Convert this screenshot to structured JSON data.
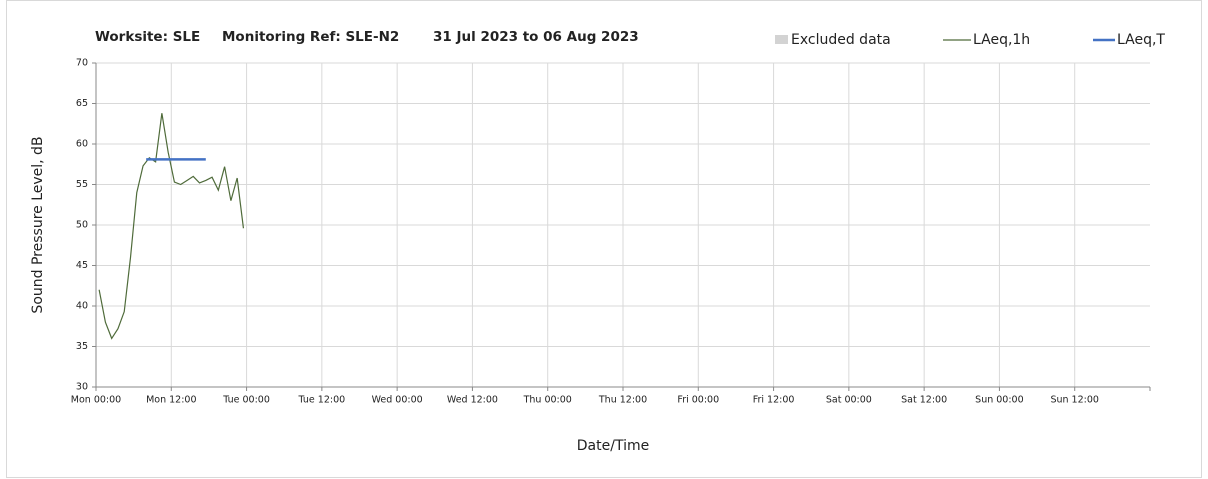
{
  "chart_data": {
    "type": "line",
    "title_parts": [
      "Worksite: SLE",
      "Monitoring Ref: SLE-N2",
      "31 Jul 2023 to 06 Aug 2023"
    ],
    "x_label": "Date/Time",
    "y_label": "Sound Pressure Level, dB",
    "xlim": [
      0,
      168
    ],
    "xticks": [
      {
        "value": 0,
        "label": "Mon 00:00"
      },
      {
        "value": 12,
        "label": "Mon 12:00"
      },
      {
        "value": 24,
        "label": "Tue 00:00"
      },
      {
        "value": 36,
        "label": "Tue 12:00"
      },
      {
        "value": 48,
        "label": "Wed 00:00"
      },
      {
        "value": 60,
        "label": "Wed 12:00"
      },
      {
        "value": 72,
        "label": "Thu 00:00"
      },
      {
        "value": 84,
        "label": "Thu 12:00"
      },
      {
        "value": 96,
        "label": "Fri 00:00"
      },
      {
        "value": 108,
        "label": "Fri 12:00"
      },
      {
        "value": 120,
        "label": "Sat 00:00"
      },
      {
        "value": 132,
        "label": "Sat 12:00"
      },
      {
        "value": 144,
        "label": "Sun 00:00"
      },
      {
        "value": 156,
        "label": "Sun 12:00"
      }
    ],
    "ylim": [
      30,
      70
    ],
    "yticks": [
      30,
      35,
      40,
      45,
      50,
      55,
      60,
      65,
      70
    ],
    "grid": true,
    "legend": "top-right",
    "series": [
      {
        "name": "Excluded data",
        "kind": "area",
        "color": "#d3d3d3",
        "x": [],
        "values": []
      },
      {
        "name": "LAeq,1h",
        "kind": "line",
        "color": "#4f6b3a",
        "x": [
          0.5,
          1.5,
          2.5,
          3.5,
          4.5,
          5.5,
          6.5,
          7.5,
          8.5,
          9.5,
          10.5,
          11.5,
          12.5,
          13.5,
          14.5,
          15.5,
          16.5,
          17.5,
          18.5,
          19.5,
          20.5,
          21.5,
          22.5,
          23.5
        ],
        "values": [
          42,
          38,
          36,
          37.2,
          39.3,
          46,
          54,
          57.3,
          58.3,
          57.8,
          63.8,
          59,
          55.3,
          55,
          55.5,
          56,
          55.2,
          55.5,
          55.9,
          54.3,
          57.2,
          53,
          55.8,
          49.6
        ]
      },
      {
        "name": "LAeq,T",
        "kind": "thick",
        "color": "#4472c4",
        "x": [
          8,
          17.5
        ],
        "values": [
          58.1,
          58.1
        ]
      }
    ]
  }
}
